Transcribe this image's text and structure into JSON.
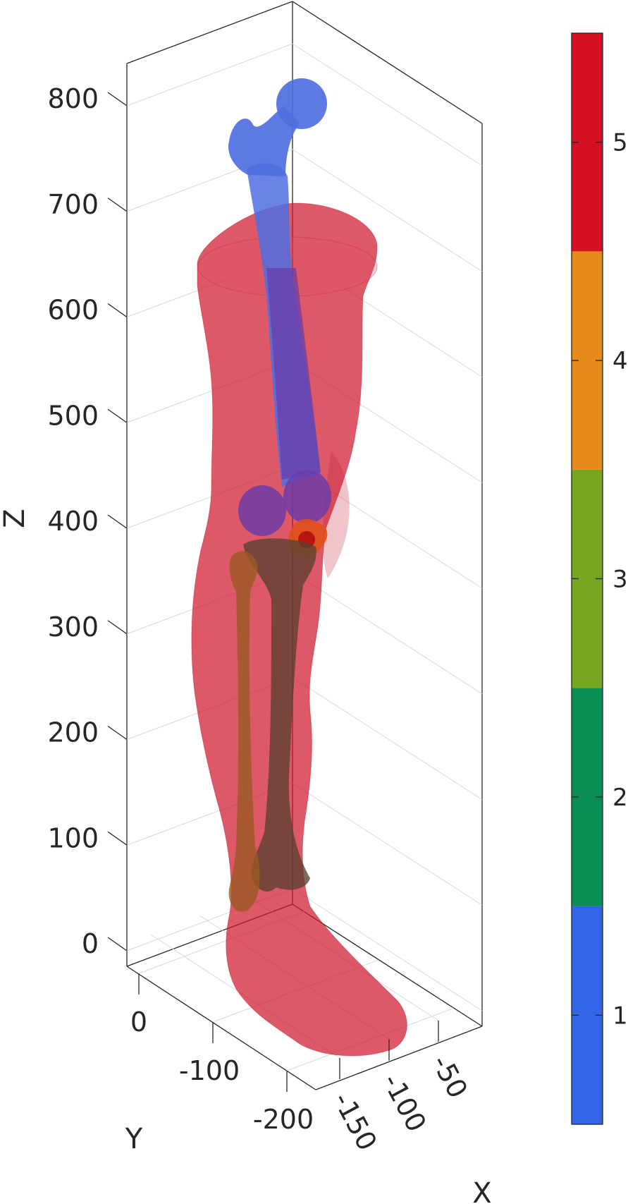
{
  "chart_data": {
    "type": "3d-surface",
    "axes": {
      "z": {
        "label": "Z",
        "ticks": [
          0,
          100,
          200,
          300,
          400,
          500,
          600,
          700,
          800
        ]
      },
      "y": {
        "label": "Y",
        "ticks": [
          0,
          -100,
          -200
        ]
      },
      "x": {
        "label": "X",
        "ticks": [
          -150,
          -100,
          -50
        ]
      }
    },
    "grid": true,
    "objects": [
      {
        "id": 1,
        "color": "#4169e1"
      },
      {
        "id": 2,
        "color": "#c8c8c8"
      },
      {
        "id": 3,
        "color": "#7e5d2a"
      },
      {
        "id": 4,
        "color": "#e08020"
      },
      {
        "id": 5,
        "color": "#d0192e"
      }
    ],
    "colorbar": {
      "ticks": [
        1,
        2,
        3,
        4,
        5
      ],
      "colors": [
        "#3366e6",
        "#0a8e56",
        "#79a620",
        "#e68a1a",
        "#d41024"
      ]
    }
  }
}
